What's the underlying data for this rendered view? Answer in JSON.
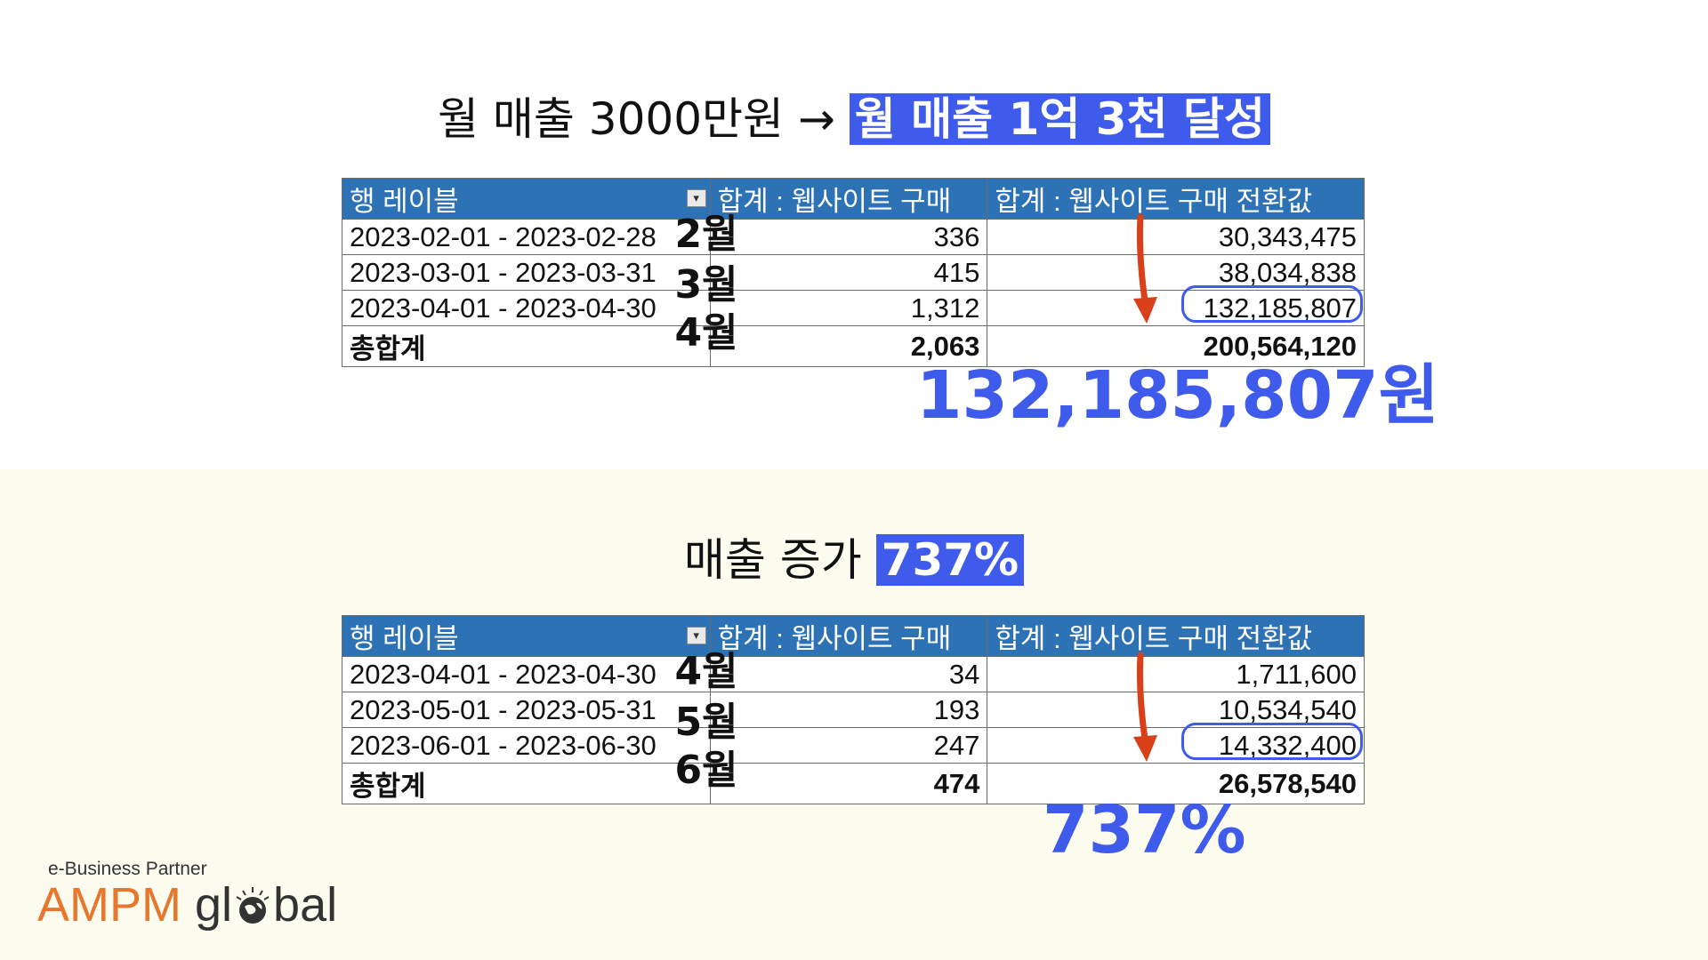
{
  "section1": {
    "headline_plain": "월 매출 3000만원 →",
    "headline_highlight": "월 매출 1억 3천 달성",
    "table": {
      "headers": [
        "행 레이블",
        "합계 : 웹사이트 구매",
        "합계 : 웹사이트 구매 전환값"
      ],
      "rows": [
        {
          "label": "2023-02-01 - 2023-02-28",
          "purchases": "336",
          "value": "30,343,475"
        },
        {
          "label": "2023-03-01 - 2023-03-31",
          "purchases": "415",
          "value": "38,034,838"
        },
        {
          "label": "2023-04-01 - 2023-04-30",
          "purchases": "1,312",
          "value": "132,185,807"
        }
      ],
      "total": {
        "label": "총합계",
        "purchases": "2,063",
        "value": "200,564,120"
      }
    },
    "months": [
      "2월",
      "3월",
      "4월"
    ],
    "big_value": "132,185,807원"
  },
  "section2": {
    "headline_plain": "매출 증가",
    "headline_highlight": "737%",
    "table": {
      "headers": [
        "행 레이블",
        "합계 : 웹사이트 구매",
        "합계 : 웹사이트 구매 전환값"
      ],
      "rows": [
        {
          "label": "2023-04-01 - 2023-04-30",
          "purchases": "34",
          "value": "1,711,600"
        },
        {
          "label": "2023-05-01 - 2023-05-31",
          "purchases": "193",
          "value": "10,534,540"
        },
        {
          "label": "2023-06-01 - 2023-06-30",
          "purchases": "247",
          "value": "14,332,400"
        }
      ],
      "total": {
        "label": "총합계",
        "purchases": "474",
        "value": "26,578,540"
      }
    },
    "months": [
      "4월",
      "5월",
      "6월"
    ],
    "big_value": "737%"
  },
  "logo": {
    "tagline": "e-Business Partner",
    "brand_a": "AMPM",
    "brand_b1": "gl",
    "brand_b2": "bal"
  },
  "colors": {
    "accent_blue": "#3f5bec",
    "header_blue": "#2e72b6",
    "arrow_red": "#d8401a",
    "logo_orange": "#e8772e",
    "bottom_band": "#fcfcef"
  }
}
